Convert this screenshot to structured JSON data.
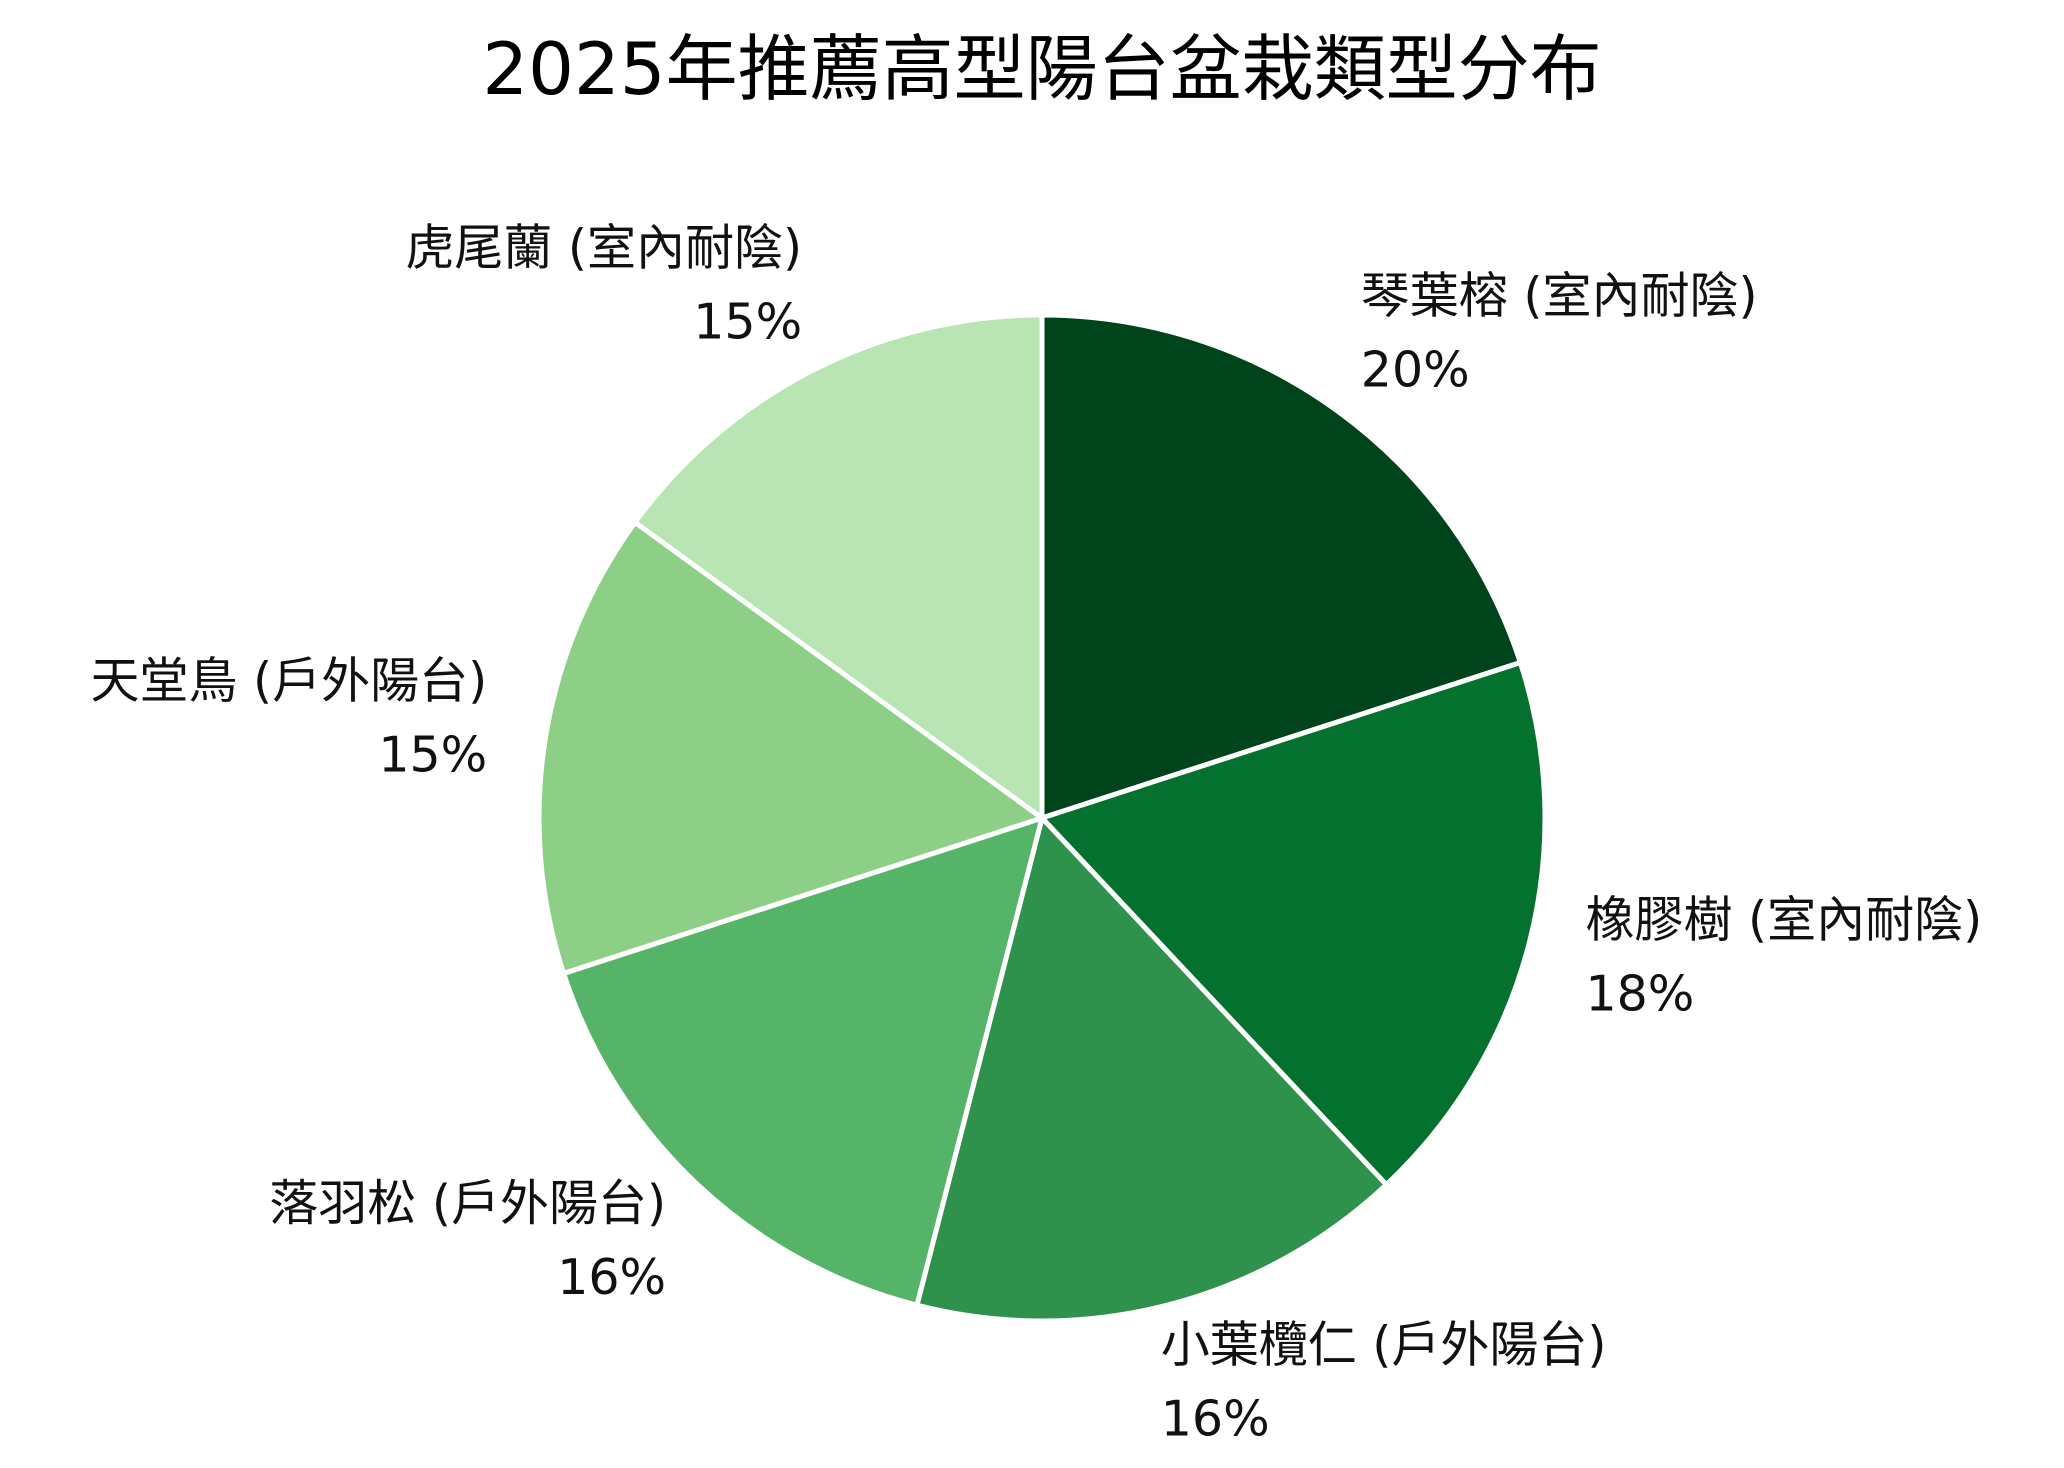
{
  "chart_data": {
    "type": "pie",
    "title": "2025年推薦高型陽台盆栽類型分布",
    "slices": [
      {
        "label": "琴葉榕 (室內耐陰)",
        "value": 20,
        "value_label": "20%",
        "color": "#00441b"
      },
      {
        "label": "橡膠樹 (室內耐陰)",
        "value": 18,
        "value_label": "18%",
        "color": "#05712f"
      },
      {
        "label": "小葉欖仁 (戶外陽台)",
        "value": 16,
        "value_label": "16%",
        "color": "#2e924d"
      },
      {
        "label": "落羽松 (戶外陽台)",
        "value": 16,
        "value_label": "16%",
        "color": "#56b468"
      },
      {
        "label": "天堂鳥 (戶外陽台)",
        "value": 15,
        "value_label": "15%",
        "color": "#8ecf88"
      },
      {
        "label": "虎尾蘭 (室內耐陰)",
        "value": 15,
        "value_label": "15%",
        "color": "#b9e4b3"
      }
    ],
    "start_angle": "12 o'clock",
    "direction": "clockwise",
    "legend": "none"
  }
}
